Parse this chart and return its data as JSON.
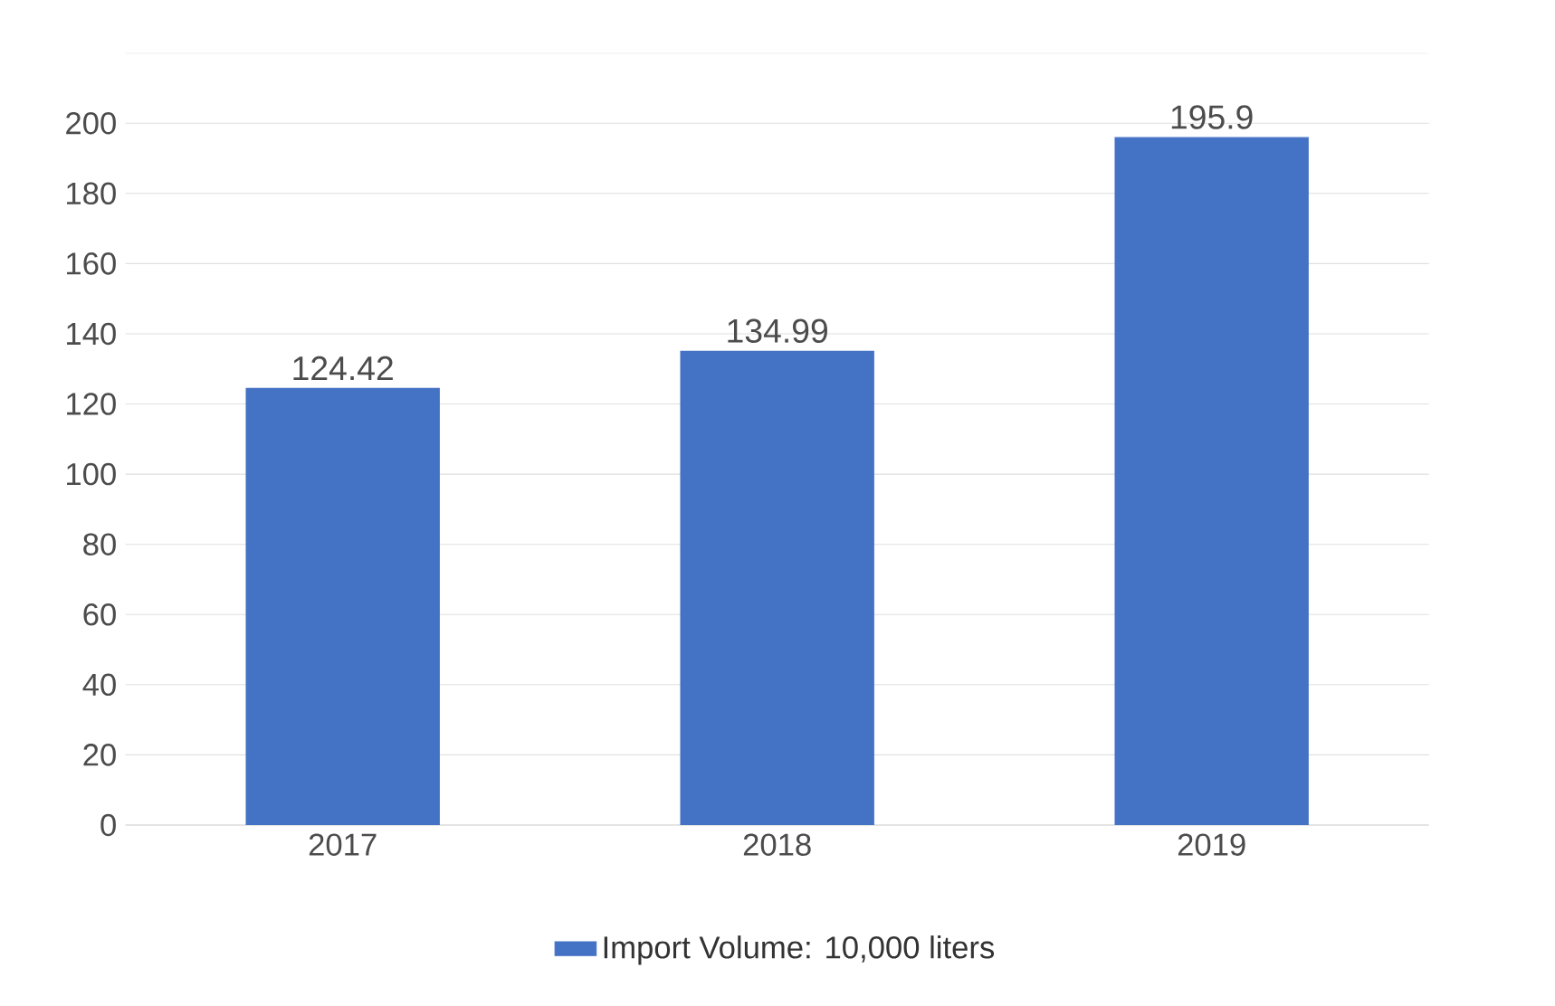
{
  "chart_data": {
    "type": "bar",
    "categories": [
      "2017",
      "2018",
      "2019"
    ],
    "series": [
      {
        "name": "Import Volume: 10,000 liters",
        "color": "#4472c4",
        "values": [
          124.42,
          134.99,
          195.9
        ]
      }
    ],
    "ylim": [
      0,
      220
    ],
    "yticks": [
      0,
      20,
      40,
      60,
      80,
      100,
      120,
      140,
      160,
      180,
      200
    ],
    "grid": "y",
    "legend": "bottom",
    "data_labels": true
  }
}
